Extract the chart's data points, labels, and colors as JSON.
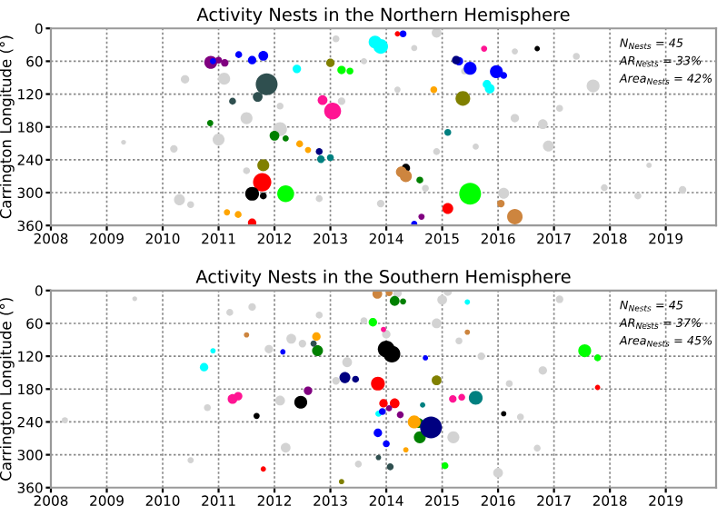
{
  "chart_data": [
    {
      "type": "bubble",
      "title": "Activity Nests in the Northern Hemisphere",
      "ylabel": "Carrington Longitude (°)",
      "xlim": [
        2008,
        2019.9
      ],
      "xticks": [
        2008,
        2009,
        2010,
        2011,
        2012,
        2013,
        2014,
        2015,
        2016,
        2017,
        2018,
        2019
      ],
      "ylim": [
        360,
        0
      ],
      "yticks": [
        0,
        60,
        120,
        180,
        240,
        300,
        360
      ],
      "grid": true,
      "marker": "circle",
      "annotations": [
        "N$_{Nests}$ = 45",
        "AR$_{Nests}$ = 33%",
        "Area$_{Nests}$ = 42%"
      ],
      "series": [
        {
          "color": "#d3d3d3",
          "x": [
            2010.2,
            2011.1,
            2011.5,
            2010.3,
            2010.5,
            2012.1,
            2014.5,
            2015.4,
            2017.1,
            2014.9,
            2013.6,
            2016.3,
            2017.7,
            2018.7,
            2017.9,
            2010.4,
            2012.1,
            2013.2,
            2013.9,
            2014.7,
            2015.6,
            2016.9,
            2016.1,
            2014.2,
            2012.8,
            2011.5,
            2013.1,
            2014.9,
            2009.3,
            2018.5,
            2017.4,
            2016.3,
            2019.3,
            2011.0,
            2016.8
          ],
          "values": [
            220,
            92,
            260,
            313,
            322,
            184,
            36,
            78,
            146,
            225,
            60,
            164,
            105,
            250,
            291,
            93,
            142,
            133,
            320,
            292,
            216,
            215,
            301,
            112,
            311,
            164,
            19,
            8,
            208,
            306,
            51,
            42,
            295,
            203,
            175
          ],
          "sizes": [
            0.12,
            0.3,
            0.1,
            0.25,
            0.1,
            0.4,
            0.08,
            0.1,
            0.1,
            0.1,
            0.08,
            0.15,
            0.35,
            0.06,
            0.1,
            0.15,
            0.1,
            0.12,
            0.12,
            0.1,
            0.08,
            0.25,
            0.25,
            0.08,
            0.1,
            0.3,
            0.1,
            0.2,
            0.05,
            0.1,
            0.1,
            0.08,
            0.12,
            0.3,
            0.2
          ]
        },
        {
          "color": "#800080",
          "x": [
            2010.86,
            2011.0,
            2011.11,
            2014.63
          ],
          "values": [
            62,
            58,
            63,
            344
          ],
          "sizes": [
            0.35,
            0.1,
            0.12,
            0.08
          ]
        },
        {
          "color": "#0000ff",
          "x": [
            2010.9,
            2011.36,
            2011.6,
            2011.8,
            2015.3,
            2015.5,
            2015.97,
            2016.1,
            2014.3,
            2014.5
          ],
          "values": [
            60,
            48,
            58,
            50,
            60,
            73,
            79,
            86,
            10,
            357
          ],
          "sizes": [
            0.08,
            0.1,
            0.15,
            0.2,
            0.15,
            0.35,
            0.35,
            0.1,
            0.1,
            0.08
          ]
        },
        {
          "color": "#000080",
          "x": [
            2012.8,
            2015.25
          ],
          "values": [
            225,
            58
          ],
          "sizes": [
            0.1,
            0.15
          ]
        },
        {
          "color": "#2f4f4f",
          "x": [
            2011.86,
            2011.7,
            2011.25
          ],
          "values": [
            102,
            125,
            133
          ],
          "sizes": [
            1.0,
            0.2,
            0.1
          ]
        },
        {
          "color": "#008080",
          "x": [
            2012.83,
            2013.0,
            2015.1
          ],
          "values": [
            239,
            236,
            190
          ],
          "sizes": [
            0.12,
            0.1,
            0.1
          ]
        },
        {
          "color": "#00ffff",
          "x": [
            2013.8,
            2013.9,
            2012.4,
            2015.8,
            2015.85
          ],
          "values": [
            25,
            33,
            74,
            102,
            110
          ],
          "sizes": [
            0.35,
            0.45,
            0.15,
            0.15,
            0.2
          ]
        },
        {
          "color": "#ff1493",
          "x": [
            2013.04,
            2012.86,
            2015.75
          ],
          "values": [
            151,
            131,
            37
          ],
          "sizes": [
            0.6,
            0.2,
            0.08
          ]
        },
        {
          "color": "#808000",
          "x": [
            2013.0,
            2015.37,
            2011.8
          ],
          "values": [
            63,
            128,
            250
          ],
          "sizes": [
            0.15,
            0.45,
            0.3
          ]
        },
        {
          "color": "#008000",
          "x": [
            2012.0,
            2012.2,
            2010.85,
            2014.6
          ],
          "values": [
            196,
            201,
            173,
            277
          ],
          "sizes": [
            0.2,
            0.08,
            0.08,
            0.1
          ]
        },
        {
          "color": "#00ff00",
          "x": [
            2013.2,
            2013.35,
            2012.2,
            2015.5
          ],
          "values": [
            76,
            78,
            302,
            302
          ],
          "sizes": [
            0.15,
            0.1,
            0.6,
            1.0
          ]
        },
        {
          "color": "#ff0000",
          "x": [
            2011.78,
            2011.6,
            2015.1,
            2014.2
          ],
          "values": [
            281,
            355,
            329,
            10
          ],
          "sizes": [
            0.7,
            0.15,
            0.25,
            0.06
          ]
        },
        {
          "color": "#000000",
          "x": [
            2011.6,
            2011.8,
            2014.35,
            2016.7
          ],
          "values": [
            302,
            306,
            255,
            37
          ],
          "sizes": [
            0.4,
            0.1,
            0.15,
            0.06
          ]
        },
        {
          "color": "#ffa500",
          "x": [
            2012.45,
            2012.6,
            2014.85,
            2011.15,
            2011.35
          ],
          "values": [
            211,
            222,
            112,
            336,
            340
          ],
          "sizes": [
            0.1,
            0.08,
            0.1,
            0.08,
            0.1
          ]
        },
        {
          "color": "#cd853f",
          "x": [
            2014.27,
            2014.35,
            2016.3,
            2016.05
          ],
          "values": [
            262,
            270,
            344,
            320
          ],
          "sizes": [
            0.25,
            0.3,
            0.5,
            0.12
          ]
        }
      ]
    },
    {
      "type": "bubble",
      "title": "Activity Nests in the Southern Hemisphere",
      "ylabel": "Carrington Longitude (°)",
      "xlim": [
        2008,
        2019.9
      ],
      "xticks": [
        2008,
        2009,
        2010,
        2011,
        2012,
        2013,
        2014,
        2015,
        2016,
        2017,
        2018,
        2019
      ],
      "ylim": [
        360,
        0
      ],
      "yticks": [
        0,
        60,
        120,
        180,
        240,
        300,
        360
      ],
      "grid": true,
      "marker": "circle",
      "annotations": [
        "N$_{Nests}$ = 45",
        "AR$_{Nests}$ = 37%",
        "Area$_{Nests}$ = 45%"
      ],
      "series": [
        {
          "color": "#d3d3d3",
          "x": [
            2008.25,
            2009.5,
            2010.8,
            2011.6,
            2012.3,
            2012.2,
            2013.3,
            2013.6,
            2015.2,
            2015.1,
            2016.0,
            2016.4,
            2016.7,
            2017.1,
            2012.5,
            2011.9,
            2012.1,
            2013.5,
            2014.2,
            2015.3,
            2015.7,
            2010.5,
            2012.8,
            2014.0,
            2015.0,
            2016.2,
            2013.1,
            2011.2,
            2016.8,
            2014.9
          ],
          "values": [
            237,
            15,
            214,
            30,
            88,
            287,
            131,
            55,
            268,
            2,
            333,
            231,
            288,
            16,
            97,
            107,
            201,
            317,
            5,
            92,
            120,
            310,
            45,
            80,
            17,
            170,
            165,
            40,
            146,
            60
          ],
          "sizes": [
            0.08,
            0.05,
            0.1,
            0.12,
            0.2,
            0.2,
            0.2,
            0.1,
            0.3,
            0.15,
            0.2,
            0.1,
            0.1,
            0.12,
            0.12,
            0.15,
            0.2,
            0.1,
            0.15,
            0.1,
            0.12,
            0.08,
            0.1,
            0.15,
            0.2,
            0.1,
            0.12,
            0.1,
            0.15,
            0.2
          ]
        },
        {
          "color": "#00ffff",
          "x": [
            2010.74,
            2010.9,
            2013.86,
            2015.45
          ],
          "values": [
            140,
            110,
            225,
            21
          ],
          "sizes": [
            0.15,
            0.06,
            0.08,
            0.06
          ]
        },
        {
          "color": "#cd853f",
          "x": [
            2013.84,
            2014.05,
            2011.5,
            2015.45
          ],
          "values": [
            6,
            4,
            81,
            76
          ],
          "sizes": [
            0.2,
            0.1,
            0.06,
            0.06
          ]
        },
        {
          "color": "#008000",
          "x": [
            2014.15,
            2014.3,
            2012.77,
            2014.58,
            2014.6
          ],
          "values": [
            19,
            20,
            110,
            242,
            268
          ],
          "sizes": [
            0.2,
            0.08,
            0.25,
            0.2,
            0.3
          ]
        },
        {
          "color": "#2f4f4f",
          "x": [
            2012.7,
            2014.07,
            2013.86
          ],
          "values": [
            97,
            322,
            305
          ],
          "sizes": [
            0.08,
            0.1,
            0.06
          ]
        },
        {
          "color": "#ffa500",
          "x": [
            2012.75,
            2014.5,
            2014.35
          ],
          "values": [
            84,
            240,
            291
          ],
          "sizes": [
            0.15,
            0.35,
            0.06
          ]
        },
        {
          "color": "#000000",
          "x": [
            2014.0,
            2014.1,
            2012.47,
            2011.68,
            2016.1
          ],
          "values": [
            107,
            116,
            204,
            229,
            225
          ],
          "sizes": [
            0.6,
            0.6,
            0.35,
            0.08,
            0.06
          ]
        },
        {
          "color": "#00ff00",
          "x": [
            2013.76,
            2017.55,
            2017.78,
            2015.05
          ],
          "values": [
            58,
            110,
            123,
            320
          ],
          "sizes": [
            0.15,
            0.35,
            0.1,
            0.1
          ]
        },
        {
          "color": "#0000ff",
          "x": [
            2012.15,
            2013.93,
            2013.85,
            2014.7,
            2014.0
          ],
          "values": [
            112,
            221,
            260,
            123,
            280
          ],
          "sizes": [
            0.06,
            0.1,
            0.15,
            0.06,
            0.1
          ]
        },
        {
          "color": "#000080",
          "x": [
            2014.8,
            2013.26,
            2013.45
          ],
          "values": [
            250,
            159,
            162
          ],
          "sizes": [
            1.0,
            0.25,
            0.1
          ]
        },
        {
          "color": "#ff0000",
          "x": [
            2013.85,
            2014.15,
            2013.95,
            2017.78,
            2011.8
          ],
          "values": [
            170,
            206,
            206,
            177,
            326
          ],
          "sizes": [
            0.4,
            0.2,
            0.15,
            0.06,
            0.06
          ]
        },
        {
          "color": "#800080",
          "x": [
            2012.6,
            2014.25,
            2014.05
          ],
          "values": [
            183,
            227,
            215
          ],
          "sizes": [
            0.15,
            0.1,
            0.08
          ]
        },
        {
          "color": "#ff1493",
          "x": [
            2011.25,
            2011.35,
            2015.19,
            2015.35,
            2013.95
          ],
          "values": [
            198,
            193,
            198,
            195,
            71
          ],
          "sizes": [
            0.2,
            0.15,
            0.12,
            0.1,
            0.06
          ]
        },
        {
          "color": "#008080",
          "x": [
            2015.6,
            2014.65
          ],
          "values": [
            196,
            209
          ],
          "sizes": [
            0.4,
            0.06
          ]
        },
        {
          "color": "#808000",
          "x": [
            2014.9,
            2013.2
          ],
          "values": [
            164,
            349
          ],
          "sizes": [
            0.2,
            0.06
          ]
        }
      ]
    }
  ]
}
